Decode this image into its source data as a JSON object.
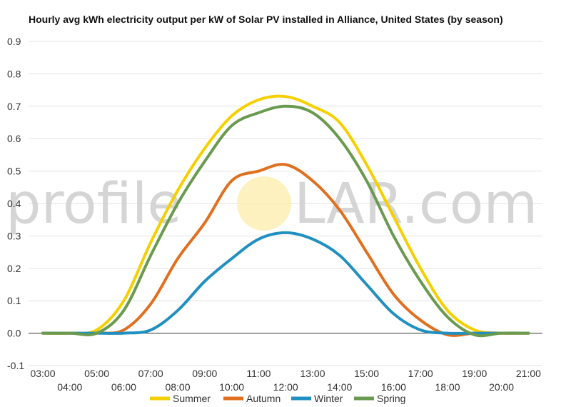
{
  "chart_data": {
    "type": "line",
    "title": "Hourly avg kWh electricity output per kW of Solar PV installed in Alliance, United States (by season)",
    "xlabel": "",
    "ylabel": "",
    "x": [
      "03:00",
      "04:00",
      "05:00",
      "06:00",
      "07:00",
      "08:00",
      "09:00",
      "10:00",
      "11:00",
      "12:00",
      "13:00",
      "14:00",
      "15:00",
      "16:00",
      "17:00",
      "18:00",
      "19:00",
      "20:00",
      "21:00"
    ],
    "ylim": [
      -0.1,
      0.9
    ],
    "yticks": [
      "-0.1",
      "0.0",
      "0.1",
      "0.2",
      "0.3",
      "0.4",
      "0.5",
      "0.6",
      "0.7",
      "0.8",
      "0.9"
    ],
    "grid": true,
    "legend_position": "bottom",
    "series": [
      {
        "name": "Summer",
        "color": "#f5d000",
        "values": [
          0.0,
          0.0,
          0.01,
          0.1,
          0.28,
          0.44,
          0.57,
          0.67,
          0.72,
          0.73,
          0.7,
          0.65,
          0.52,
          0.36,
          0.2,
          0.07,
          0.01,
          0.0,
          0.0
        ]
      },
      {
        "name": "Autumn",
        "color": "#e07020",
        "values": [
          0.0,
          0.0,
          0.0,
          0.01,
          0.09,
          0.23,
          0.34,
          0.47,
          0.5,
          0.52,
          0.47,
          0.38,
          0.25,
          0.12,
          0.04,
          -0.005,
          0.0,
          0.0,
          0.0
        ]
      },
      {
        "name": "Winter",
        "color": "#2090c0",
        "values": [
          0.0,
          0.0,
          0.0,
          0.0,
          0.01,
          0.07,
          0.16,
          0.23,
          0.29,
          0.31,
          0.29,
          0.24,
          0.15,
          0.06,
          0.01,
          0.0,
          0.0,
          0.0,
          0.0
        ]
      },
      {
        "name": "Spring",
        "color": "#6a9a50",
        "values": [
          0.0,
          0.0,
          0.0,
          0.07,
          0.24,
          0.4,
          0.53,
          0.64,
          0.68,
          0.7,
          0.68,
          0.6,
          0.47,
          0.3,
          0.16,
          0.05,
          -0.005,
          0.0,
          0.0
        ]
      }
    ]
  },
  "watermark": {
    "text_left": "profile",
    "text_right": "LAR.com",
    "sun_color": "#fdeeb0"
  }
}
